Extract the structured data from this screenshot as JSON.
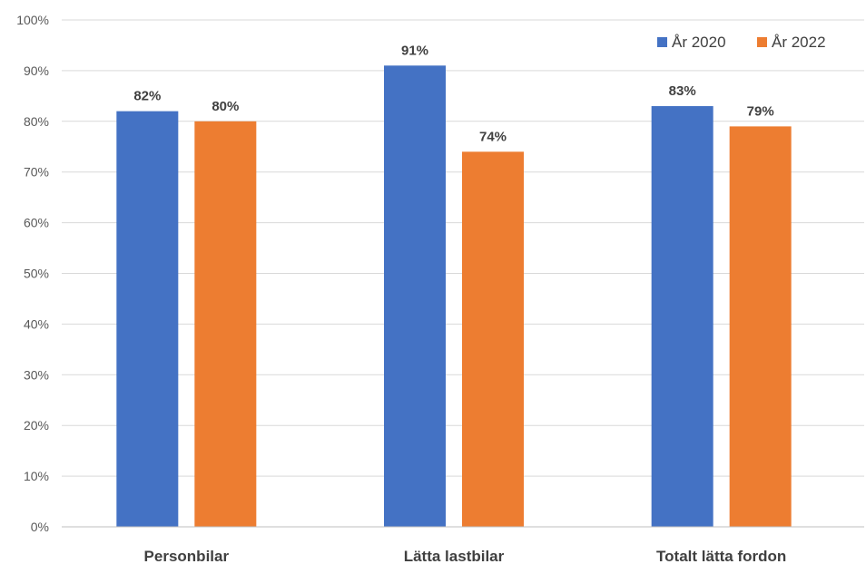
{
  "chart_data": {
    "type": "bar",
    "categories": [
      "Personbilar",
      "Lätta lastbilar",
      "Totalt lätta fordon"
    ],
    "series": [
      {
        "name": "År 2020",
        "color": "#4472C4",
        "values": [
          82,
          91,
          83
        ],
        "labels": [
          "82%",
          "91%",
          "83%"
        ]
      },
      {
        "name": "År 2022",
        "color": "#ED7D31",
        "values": [
          80,
          74,
          79
        ],
        "labels": [
          "80%",
          "74%",
          "79%"
        ]
      }
    ],
    "ylim": [
      0,
      100
    ],
    "yticks": [
      "0%",
      "10%",
      "20%",
      "30%",
      "40%",
      "50%",
      "60%",
      "70%",
      "80%",
      "90%",
      "100%"
    ],
    "grid": true,
    "legend_position": "top-right",
    "title": "",
    "xlabel": "",
    "ylabel": ""
  }
}
